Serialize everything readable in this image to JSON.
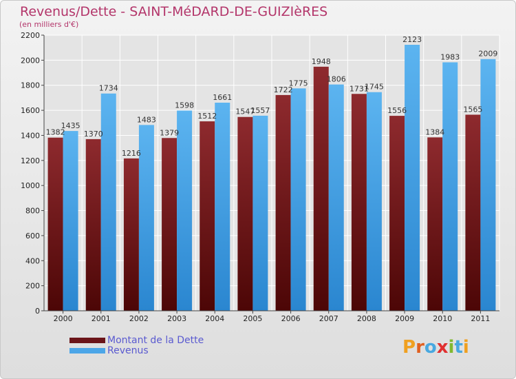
{
  "header": {
    "title": "Revenus/Dette - SAINT-MéDARD-DE-GUIZIèRES",
    "subtitle": "(en milliers d'€)"
  },
  "legend": {
    "items": [
      {
        "label": "Montant de la Dette",
        "color": "#6b1418"
      },
      {
        "label": "Revenus",
        "color": "#4ca6e8"
      }
    ]
  },
  "logo": {
    "text": "Proxiti",
    "letters": [
      {
        "ch": "P",
        "color": "#f0a020"
      },
      {
        "ch": "r",
        "color": "#e06020"
      },
      {
        "ch": "o",
        "color": "#48a8e0"
      },
      {
        "ch": "x",
        "color": "#e03030"
      },
      {
        "ch": "i",
        "color": "#80b830"
      },
      {
        "ch": "t",
        "color": "#48a8e0"
      },
      {
        "ch": "i",
        "color": "#f0a020"
      }
    ]
  },
  "chart_data": {
    "type": "bar",
    "title": "Revenus/Dette - SAINT-MéDARD-DE-GUIZIèRES",
    "subtitle": "(en milliers d'€)",
    "xlabel": "",
    "ylabel": "",
    "categories": [
      "2000",
      "2001",
      "2002",
      "2003",
      "2004",
      "2005",
      "2006",
      "2007",
      "2008",
      "2009",
      "2010",
      "2011"
    ],
    "series": [
      {
        "name": "Montant de la Dette",
        "color": "#6b1418",
        "values": [
          1382,
          1370,
          1216,
          1379,
          1512,
          1547,
          1722,
          1948,
          1731,
          1556,
          1384,
          1565
        ],
        "labels": [
          "1382",
          "1370",
          "1216",
          "1379",
          "1512",
          "1547",
          "1722",
          "1948",
          "1731",
          "1556",
          "1384",
          "1565"
        ]
      },
      {
        "name": "Revenus",
        "color": "#4ca6e8",
        "values": [
          1435,
          1734,
          1483,
          1598,
          1661,
          1557,
          1775,
          1806,
          1745,
          2123,
          1983,
          2009
        ],
        "labels": [
          "1435",
          "1734",
          "1483",
          "1598",
          "1661",
          "1557",
          "1775",
          "1806",
          "1745",
          "2123",
          "1983",
          "2009"
        ]
      }
    ],
    "ylim": [
      0,
      2200
    ],
    "yticks": [
      0,
      200,
      400,
      600,
      800,
      1000,
      1200,
      1400,
      1600,
      1800,
      2000,
      2200
    ],
    "ytick_labels": [
      "0",
      "200",
      "400",
      "600",
      "800",
      "1000",
      "1200",
      "1400",
      "1600",
      "1800",
      "2000",
      "2200"
    ],
    "grid": true,
    "legend_position": "bottom-left"
  }
}
